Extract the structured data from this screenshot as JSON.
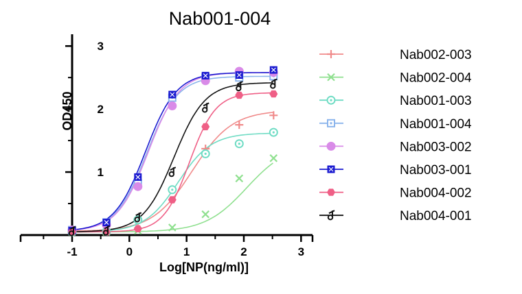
{
  "chart_data": {
    "type": "line",
    "title": "Nab001-004",
    "xlabel": "Log[NP(ng/ml)]",
    "ylabel": "OD450",
    "xlim": [
      -1.9,
      3.2
    ],
    "ylim": [
      0,
      3.1
    ],
    "x_ticks": [
      -1,
      0,
      1,
      2,
      3
    ],
    "x_tick_labels": [
      "-1",
      "0",
      "1",
      "2",
      "3"
    ],
    "y_ticks": [
      1,
      2,
      3
    ],
    "y_tick_labels": [
      "1",
      "2",
      "3"
    ],
    "legend_position": "right",
    "grid": false,
    "x": [
      -1.0,
      -0.4,
      0.15,
      0.75,
      1.33,
      1.92,
      2.52
    ],
    "series": [
      {
        "name": "Nab002-003",
        "color": "#f08a8a",
        "marker": "plus",
        "values": [
          0.07,
          0.07,
          0.22,
          0.72,
          1.37,
          1.75,
          1.9
        ],
        "curve": {
          "bottom": 0.06,
          "top": 1.98,
          "ec50": 1.1,
          "hill": 1.25
        }
      },
      {
        "name": "Nab002-004",
        "color": "#8fe08f",
        "marker": "x",
        "values": [
          0.05,
          0.05,
          0.07,
          0.12,
          0.33,
          0.9,
          1.22
        ],
        "curve": {
          "bottom": 0.05,
          "top": 1.45,
          "ec50": 2.05,
          "hill": 1.2
        }
      },
      {
        "name": "Nab001-003",
        "color": "#6fdcc4",
        "marker": "circle-dot",
        "values": [
          0.05,
          0.06,
          0.24,
          0.72,
          1.29,
          1.45,
          1.63
        ],
        "curve": {
          "bottom": 0.05,
          "top": 1.62,
          "ec50": 0.85,
          "hill": 1.5
        }
      },
      {
        "name": "Nab001-004",
        "color": "#8ab4ec",
        "marker": "square-dot",
        "values": [
          0.08,
          0.2,
          0.82,
          2.18,
          2.5,
          2.5,
          2.52
        ],
        "curve": {
          "bottom": 0.06,
          "top": 2.52,
          "ec50": 0.3,
          "hill": 1.6
        }
      },
      {
        "name": "Nab003-002",
        "color": "#d98be8",
        "marker": "circle",
        "values": [
          0.08,
          0.16,
          0.77,
          2.05,
          2.45,
          2.6,
          2.58
        ],
        "curve": {
          "bottom": 0.06,
          "top": 2.58,
          "ec50": 0.33,
          "hill": 1.6
        }
      },
      {
        "name": "Nab003-001",
        "color": "#1a1ad0",
        "marker": "square-x",
        "values": [
          0.07,
          0.2,
          0.92,
          2.23,
          2.53,
          2.54,
          2.62
        ],
        "curve": {
          "bottom": 0.06,
          "top": 2.58,
          "ec50": 0.28,
          "hill": 1.6
        }
      },
      {
        "name": "Nab004-002",
        "color": "#ef5f86",
        "marker": "hexagon",
        "values": [
          0.05,
          0.05,
          0.1,
          0.56,
          1.72,
          2.22,
          2.24
        ],
        "curve": {
          "bottom": 0.05,
          "top": 2.26,
          "ec50": 1.05,
          "hill": 1.9
        }
      },
      {
        "name": "Nab004-001",
        "color": "#111111",
        "marker": "hook",
        "values": [
          0.06,
          0.07,
          0.28,
          1.0,
          2.02,
          2.36,
          2.4
        ],
        "curve": {
          "bottom": 0.05,
          "top": 2.42,
          "ec50": 0.78,
          "hill": 1.6
        }
      }
    ]
  }
}
